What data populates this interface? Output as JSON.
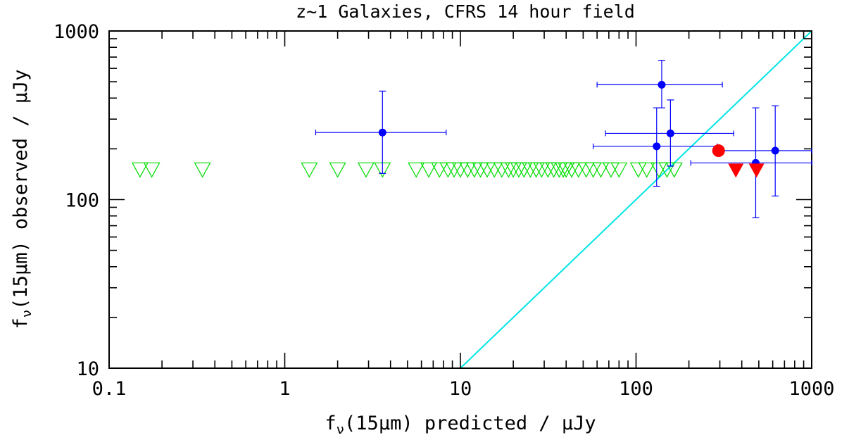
{
  "chart_data": {
    "type": "scatter",
    "title": "z~1 Galaxies, CFRS 14 hour field",
    "xlabel": "fν(15μm) predicted / μJy",
    "ylabel": "fν(15μm) observed / μJy",
    "xlabel_parts": {
      "pre": "f",
      "sub": "ν",
      "post": "(15μm) predicted / μJy"
    },
    "ylabel_parts": {
      "pre": "f",
      "sub": "ν",
      "post": "(15μm) observed / μJy"
    },
    "xscale": "log",
    "yscale": "log",
    "xlim": [
      0.1,
      1000
    ],
    "ylim": [
      10,
      1000
    ],
    "x_tick_labels": [
      "0.1",
      "1",
      "10",
      "100",
      "1000"
    ],
    "y_tick_labels": [
      "10",
      "100",
      "1000"
    ],
    "x_ticks": [
      0.1,
      1,
      10,
      100,
      1000
    ],
    "y_ticks": [
      10,
      100,
      1000
    ],
    "grid": false,
    "colors": {
      "detections": "#0000ff",
      "upper_limits": "#00dd00",
      "red_points": "#ff0000",
      "equality_line": "#00e5e5",
      "axes": "#000000"
    },
    "series": [
      {
        "marker": "filled-circle-with-errorbars",
        "color": "#0000ff",
        "points": [
          {
            "x": 3.6,
            "y": 250,
            "xerr": [
              1.5,
              8.3
            ],
            "yerr": [
              143,
              440
            ]
          },
          {
            "x": 140,
            "y": 480,
            "xerr": [
              60,
              310
            ],
            "yerr": [
              350,
              670
            ]
          },
          {
            "x": 157,
            "y": 247,
            "xerr": [
              67,
              360
            ],
            "yerr": [
              158,
              390
            ]
          },
          {
            "x": 131,
            "y": 207,
            "xerr": [
              57,
              290
            ],
            "yerr": [
              120,
              350
            ]
          },
          {
            "x": 480,
            "y": 165,
            "xerr": [
              205,
              1000
            ],
            "yerr": [
              78,
              350
            ]
          },
          {
            "x": 620,
            "y": 195,
            "xerr": [
              290,
              1000
            ],
            "yerr": [
              105,
              360
            ]
          }
        ]
      },
      {
        "marker": "open-triangle-down",
        "color": "#00dd00",
        "y": 150,
        "x": [
          0.15,
          0.175,
          0.34,
          1.38,
          2.0,
          2.9,
          3.6,
          5.6,
          6.6,
          7.6,
          8.5,
          9.2,
          10.0,
          11.0,
          12.0,
          13.0,
          14.2,
          15.6,
          17.2,
          18.8,
          20.0,
          21.5,
          23.0,
          25.0,
          27.0,
          29.0,
          31.5,
          34.0,
          36.5,
          38.5,
          40.0,
          43.0,
          47.0,
          52.0,
          57.0,
          63.0,
          72.0,
          80.0,
          103.0,
          115.0,
          135.0,
          150.0,
          165.0
        ]
      },
      {
        "marker": "filled-circle",
        "color": "#ff0000",
        "points": [
          {
            "x": 295,
            "y": 195
          }
        ]
      },
      {
        "marker": "filled-triangle-down",
        "color": "#ff0000",
        "points": [
          {
            "x": 370,
            "y": 150
          },
          {
            "x": 485,
            "y": 150
          }
        ]
      }
    ],
    "lines": [
      {
        "type": "equality",
        "color": "#00e5e5",
        "points": [
          [
            10,
            10
          ],
          [
            1000,
            1000
          ]
        ]
      }
    ]
  }
}
